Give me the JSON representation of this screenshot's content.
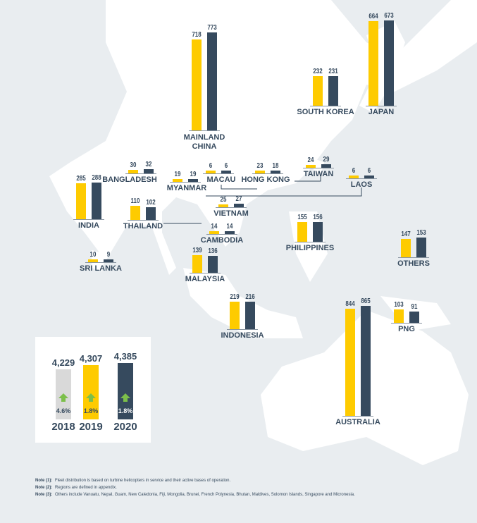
{
  "colors": {
    "2019": "#fecb00",
    "2020": "#364a5e",
    "2018": "#d9d9d9",
    "growth": "#7cbf4a",
    "sea": "#e9edf0",
    "land": "#ffffff"
  },
  "chart_data": {
    "type": "bar",
    "series": [
      {
        "name": "2019",
        "color": "#fecb00"
      },
      {
        "name": "2020",
        "color": "#364a5e"
      }
    ],
    "regions": [
      {
        "name": "MAINLAND CHINA",
        "values": [
          718,
          773
        ]
      },
      {
        "name": "SOUTH KOREA",
        "values": [
          232,
          231
        ]
      },
      {
        "name": "JAPAN",
        "values": [
          664,
          673
        ]
      },
      {
        "name": "BANGLADESH",
        "values": [
          30,
          32
        ]
      },
      {
        "name": "MYANMAR",
        "values": [
          19,
          19
        ]
      },
      {
        "name": "MACAU",
        "values": [
          6,
          6
        ]
      },
      {
        "name": "HONG KONG",
        "values": [
          23,
          18
        ]
      },
      {
        "name": "TAIWAN",
        "values": [
          24,
          29
        ]
      },
      {
        "name": "LAOS",
        "values": [
          6,
          6
        ]
      },
      {
        "name": "INDIA",
        "values": [
          285,
          288
        ]
      },
      {
        "name": "THAILAND",
        "values": [
          110,
          102
        ]
      },
      {
        "name": "VIETNAM",
        "values": [
          25,
          27
        ]
      },
      {
        "name": "CAMBODIA",
        "values": [
          14,
          14
        ]
      },
      {
        "name": "PHILIPPINES",
        "values": [
          155,
          156
        ]
      },
      {
        "name": "OTHERS",
        "values": [
          147,
          153
        ]
      },
      {
        "name": "SRI LANKA",
        "values": [
          10,
          9
        ]
      },
      {
        "name": "MALAYSIA",
        "values": [
          139,
          136
        ]
      },
      {
        "name": "INDONESIA",
        "values": [
          219,
          216
        ]
      },
      {
        "name": "AUSTRALIA",
        "values": [
          844,
          865
        ]
      },
      {
        "name": "PNG",
        "values": [
          103,
          91
        ]
      }
    ],
    "totals": [
      {
        "year": "2018",
        "value": "4,229",
        "growth": "4.6%",
        "color": "#d9d9d9"
      },
      {
        "year": "2019",
        "value": "4,307",
        "growth": "1.8%",
        "color": "#fecb00"
      },
      {
        "year": "2020",
        "value": "4,385",
        "growth": "1.8%",
        "color": "#364a5e"
      }
    ]
  },
  "notes": [
    {
      "label": "Note (1):",
      "text": "Fleet distribution is based on turbine helicopters in service and their active bases of operation."
    },
    {
      "label": "Note (2):",
      "text": "Regions are defined in appendix."
    },
    {
      "label": "Note (3):",
      "text": "Others include Vanuatu, Nepal, Guam, New Caledonia, Fiji, Mongolia, Brunei, French Polynesia, Bhutan, Maldives, Solomon Islands, Singapore and Micronesia."
    }
  ]
}
